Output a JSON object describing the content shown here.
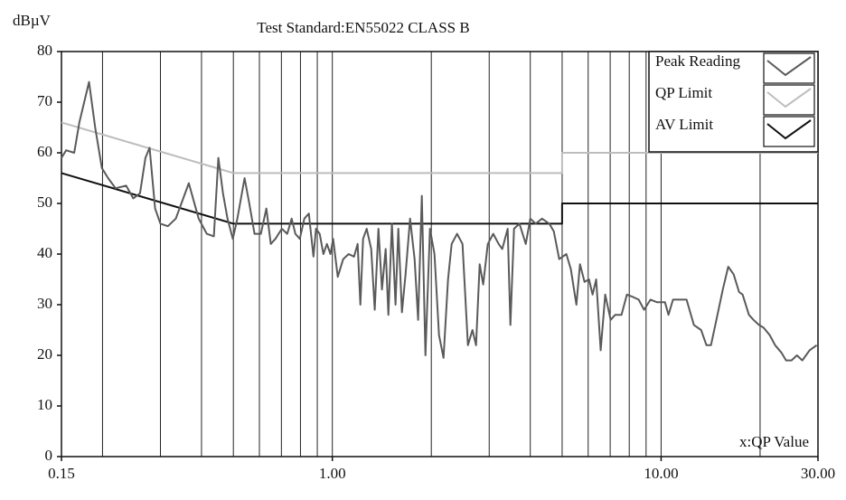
{
  "chart_data": {
    "type": "line",
    "title": "Test Standard:EN55022 CLASS B",
    "y_label": "dBµV",
    "annotation": "x:QP Value",
    "log_x": true,
    "legend": "top-right",
    "xlim": [
      0.15,
      30
    ],
    "ylim": [
      0,
      80
    ],
    "xticks": [
      {
        "value": 0.15,
        "label": "0.15"
      },
      {
        "value": 1,
        "label": "1.00"
      },
      {
        "value": 10,
        "label": "10.00"
      },
      {
        "value": 30,
        "label": "30.00"
      }
    ],
    "xgrid": [
      0.2,
      0.3,
      0.4,
      0.5,
      0.6,
      0.7,
      0.8,
      0.9,
      1,
      2,
      3,
      4,
      5,
      6,
      7,
      8,
      9,
      10,
      20
    ],
    "yticks": [
      0,
      10,
      20,
      30,
      40,
      50,
      60,
      70,
      80
    ],
    "series": [
      {
        "name": "Peak Reading",
        "color": "#5a5a5a",
        "x": [
          0.15,
          0.155,
          0.164,
          0.17,
          0.182,
          0.19,
          0.199,
          0.208,
          0.219,
          0.236,
          0.248,
          0.26,
          0.27,
          0.278,
          0.289,
          0.3,
          0.316,
          0.334,
          0.366,
          0.392,
          0.415,
          0.436,
          0.45,
          0.465,
          0.48,
          0.498,
          0.514,
          0.541,
          0.559,
          0.58,
          0.606,
          0.63,
          0.65,
          0.671,
          0.702,
          0.729,
          0.752,
          0.772,
          0.796,
          0.822,
          0.848,
          0.876,
          0.892,
          0.915,
          0.939,
          0.963,
          0.987,
          1.006,
          1.039,
          1.079,
          1.121,
          1.164,
          1.194,
          1.217,
          1.24,
          1.272,
          1.313,
          1.346,
          1.381,
          1.416,
          1.453,
          1.481,
          1.518,
          1.557,
          1.587,
          1.628,
          1.67,
          1.724,
          1.779,
          1.824,
          1.871,
          1.919,
          1.981,
          2.045,
          2.11,
          2.179,
          2.248,
          2.306,
          2.395,
          2.488,
          2.585,
          2.668,
          2.736,
          2.806,
          2.877,
          2.97,
          3.085,
          3.205,
          3.287,
          3.415,
          3.48,
          3.569,
          3.707,
          3.875,
          4.0,
          4.155,
          4.343,
          4.568,
          4.715,
          4.897,
          5.15,
          5.316,
          5.523,
          5.665,
          5.847,
          6.035,
          6.189,
          6.347,
          6.551,
          6.762,
          7.023,
          7.249,
          7.577,
          7.871,
          8.228,
          8.547,
          8.878,
          9.282,
          9.701,
          10.27,
          10.53,
          10.87,
          11.36,
          11.95,
          12.58,
          13.23,
          13.74,
          14.18,
          14.73,
          15.4,
          16.0,
          16.62,
          17.26,
          17.7,
          18.5,
          19.1,
          19.84,
          20.48,
          21.4,
          22.23,
          23.24,
          23.99,
          24.92,
          25.88,
          26.88,
          28.28,
          29.74
        ],
        "values": [
          59,
          60.5,
          60,
          66,
          74,
          65,
          57,
          55,
          53,
          53.5,
          51,
          52,
          59,
          61,
          49,
          46,
          45.5,
          47,
          54,
          47,
          44,
          43.5,
          59,
          52,
          47,
          43,
          47,
          55,
          50,
          44,
          44,
          49,
          42,
          43,
          45,
          44,
          47,
          44,
          43,
          47,
          48,
          39.5,
          45,
          44,
          40,
          42,
          40,
          43,
          35.5,
          39,
          40,
          39.5,
          42,
          30,
          43,
          45,
          41,
          29,
          45,
          33,
          41,
          28,
          46,
          30,
          45,
          28.5,
          36,
          47,
          39,
          27,
          51.5,
          20,
          45,
          40,
          24,
          19.5,
          35,
          42,
          44,
          42,
          22,
          25,
          22,
          38,
          34,
          42,
          44,
          42,
          41,
          45,
          26,
          45,
          46,
          42,
          47,
          46,
          47,
          46,
          44.5,
          39,
          40,
          37,
          30,
          38,
          34.5,
          35,
          32,
          35,
          21,
          32,
          27,
          28,
          28,
          32,
          31.5,
          31,
          29,
          31,
          30.5,
          30.5,
          28,
          31,
          31,
          31,
          26,
          25,
          22,
          22,
          27,
          33,
          37.5,
          36,
          32.5,
          32,
          28,
          27,
          26,
          25.5,
          24,
          22,
          20.5,
          19,
          19,
          20,
          19,
          21,
          22
        ]
      },
      {
        "name": "QP Limit",
        "color": "#bdbdbd",
        "x": [
          0.15,
          0.5,
          5,
          5,
          30
        ],
        "values": [
          66,
          56,
          56,
          60,
          60
        ]
      },
      {
        "name": "AV Limit",
        "color": "#111111",
        "x": [
          0.15,
          0.5,
          5,
          5,
          30
        ],
        "values": [
          56,
          46,
          46,
          50,
          50
        ]
      }
    ]
  }
}
